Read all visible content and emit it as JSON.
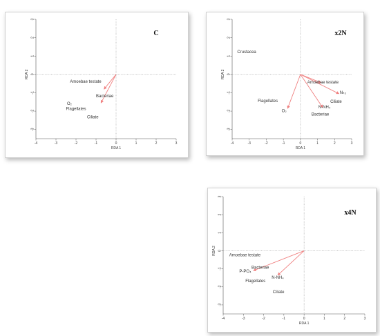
{
  "panel_color": "#f08080",
  "chart_data": [
    {
      "type": "biplot",
      "title": "C",
      "xlabel": "RDA 1",
      "ylabel": "RDA 2",
      "xlim": [
        -4,
        3
      ],
      "ylim": [
        -3.5,
        3
      ],
      "xticks": [
        "-4",
        "-3",
        "-2",
        "-1",
        "0",
        "1",
        "2",
        "3"
      ],
      "yticks": [
        "-3",
        "-2",
        "-1",
        "0",
        "1",
        "2",
        "3"
      ],
      "arrows": [
        {
          "label": "Bacteriae",
          "x": -0.6,
          "y": -0.8
        },
        {
          "label": "O2",
          "x": -0.75,
          "y": -1.55
        }
      ],
      "labels": [
        {
          "text": "Amoebae testate",
          "x": -2.3,
          "y": -0.45
        },
        {
          "text": "Bacteriae",
          "x": -1.0,
          "y": -1.25
        },
        {
          "text": "O₂",
          "x": -2.45,
          "y": -1.65
        },
        {
          "text": "Flagellates",
          "x": -2.5,
          "y": -1.95
        },
        {
          "text": "Ciliate",
          "x": -1.45,
          "y": -2.4
        }
      ]
    },
    {
      "type": "biplot",
      "title": "x2N",
      "xlabel": "RDA 1",
      "ylabel": "RDA 2",
      "xlim": [
        -4,
        3
      ],
      "ylim": [
        -3.5,
        3
      ],
      "xticks": [
        "-4",
        "-3",
        "-2",
        "-1",
        "0",
        "1",
        "2",
        "3"
      ],
      "yticks": [
        "-3",
        "-2",
        "-1",
        "0",
        "1",
        "2",
        "3"
      ],
      "arrows": [
        {
          "label": "O2",
          "x": -0.75,
          "y": -1.85
        },
        {
          "label": "N-NH4",
          "x": 1.3,
          "y": -1.8
        },
        {
          "label": "NH3",
          "x": 2.25,
          "y": -1.05
        },
        {
          "label": "a",
          "x": 1.2,
          "y": -0.45
        }
      ],
      "labels": [
        {
          "text": "Crustacea",
          "x": -3.7,
          "y": 1.15
        },
        {
          "text": "Amoebae testate",
          "x": 0.4,
          "y": -0.5
        },
        {
          "text": "N-NH₄",
          "x": 1.05,
          "y": -1.85
        },
        {
          "text": "Nₕ₃",
          "x": 2.3,
          "y": -1.05
        },
        {
          "text": "Ciliate",
          "x": 1.75,
          "y": -1.55
        },
        {
          "text": "Flagellates",
          "x": -2.5,
          "y": -1.5
        },
        {
          "text": "O₂",
          "x": -1.1,
          "y": -2.05
        },
        {
          "text": "Bacteriae",
          "x": 0.65,
          "y": -2.25
        }
      ]
    },
    {
      "type": "biplot",
      "title": "x4N",
      "xlabel": "RDA 1",
      "ylabel": "RDA 2",
      "xlim": [
        -4,
        3
      ],
      "ylim": [
        -3.5,
        3
      ],
      "xticks": [
        "-4",
        "-3",
        "-2",
        "-1",
        "0",
        "1",
        "2",
        "3"
      ],
      "yticks": [
        "-3",
        "-2",
        "-1",
        "0",
        "1",
        "2",
        "3"
      ],
      "arrows": [
        {
          "label": "P-PO4",
          "x": -2.5,
          "y": -1.1
        },
        {
          "label": "N-NH4",
          "x": -1.3,
          "y": -1.35
        }
      ],
      "labels": [
        {
          "text": "Amoebae testate",
          "x": -3.7,
          "y": -0.3
        },
        {
          "text": "P-PO₄",
          "x": -3.2,
          "y": -1.2
        },
        {
          "text": "Bacteriae",
          "x": -2.6,
          "y": -1.0
        },
        {
          "text": "N-NH₄",
          "x": -1.6,
          "y": -1.55
        },
        {
          "text": "Flagellates",
          "x": -2.9,
          "y": -1.75
        },
        {
          "text": "Ciliate",
          "x": -1.55,
          "y": -2.35
        }
      ]
    }
  ]
}
